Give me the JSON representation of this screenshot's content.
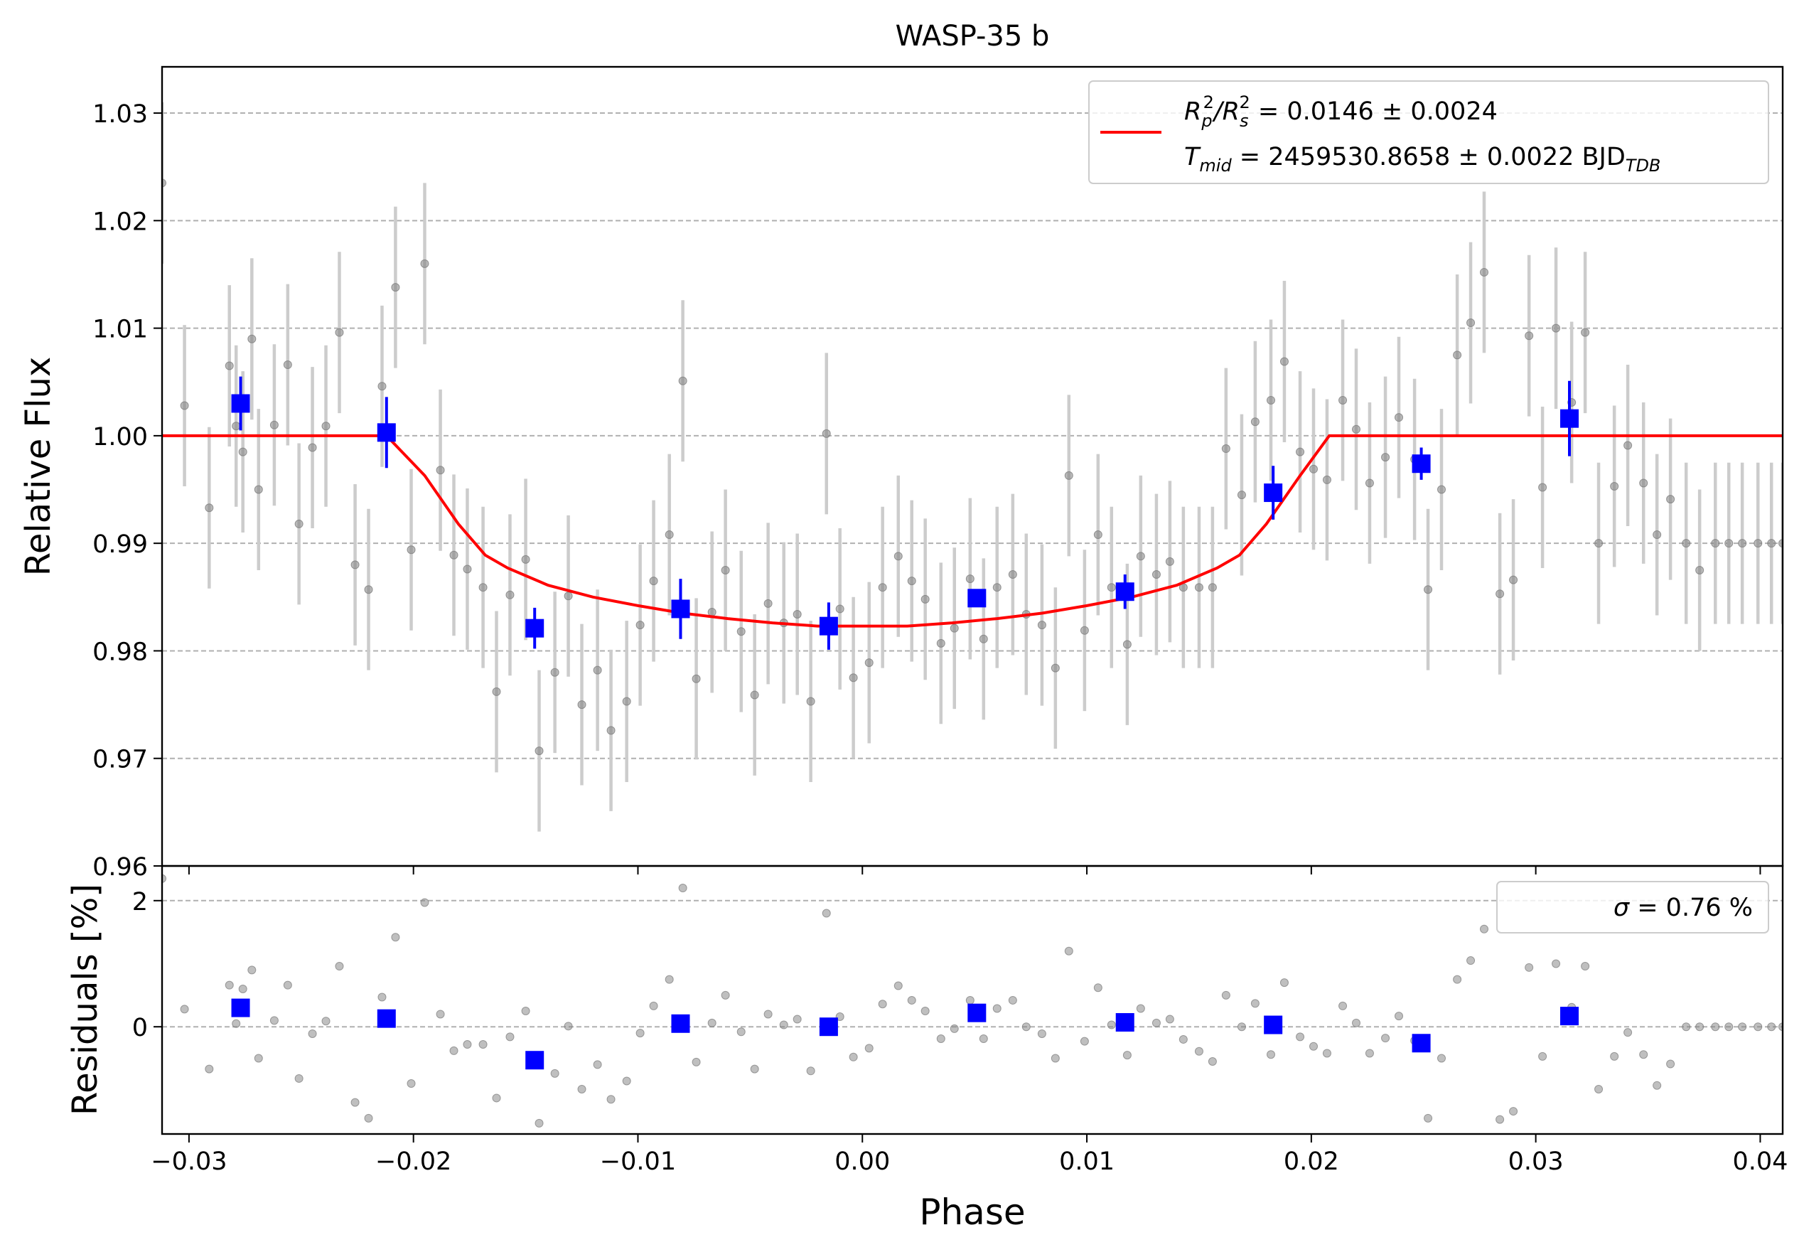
{
  "chart_data": [
    {
      "type": "scatter",
      "panel": "top",
      "title": "WASP-35 b",
      "xlabel": "",
      "ylabel": "Relative Flux",
      "xlim": [
        -0.0312,
        0.041
      ],
      "ylim": [
        0.96,
        1.0343
      ],
      "xticks": [
        -0.03,
        -0.02,
        -0.01,
        0.0,
        0.01,
        0.02,
        0.03,
        0.04
      ],
      "xticklabels": [
        "−0.03",
        "−0.02",
        "−0.01",
        "0.00",
        "0.01",
        "0.02",
        "0.03",
        "0.04"
      ],
      "yticks": [
        0.96,
        0.97,
        0.98,
        0.99,
        1.0,
        1.01,
        1.02,
        1.03
      ],
      "yticklabels": [
        "0.96",
        "0.97",
        "0.98",
        "0.99",
        "1.00",
        "1.01",
        "1.02",
        "1.03"
      ],
      "grid": "horizontal dashed",
      "legend_position": "upper-right",
      "legend": {
        "line1": {
          "pre": "R",
          "sub1": "p",
          "sup1": "2",
          "mid": "/R",
          "sub2": "s",
          "sup2": "2",
          "post": " = 0.0146 ± 0.0024"
        },
        "line2": {
          "pre": "T",
          "sub": "mid",
          "post": " = 2459530.8658 ± 0.0022 BJD",
          "sub2": "TDB"
        }
      },
      "model": {
        "color": "#ff0000",
        "x": [
          -0.0312,
          -0.0212,
          -0.0195,
          -0.018,
          -0.0168,
          -0.0158,
          -0.014,
          -0.012,
          -0.01,
          -0.008,
          -0.006,
          -0.004,
          -0.002,
          0.0,
          0.002,
          0.004,
          0.006,
          0.008,
          0.01,
          0.012,
          0.014,
          0.0158,
          0.0168,
          0.018,
          0.0195,
          0.0208,
          0.041
        ],
        "y": [
          1.0,
          1.0,
          0.9963,
          0.9918,
          0.9889,
          0.9877,
          0.9861,
          0.985,
          0.9842,
          0.9835,
          0.983,
          0.9826,
          0.9823,
          0.9823,
          0.9823,
          0.9826,
          0.983,
          0.9835,
          0.9842,
          0.985,
          0.9861,
          0.9877,
          0.9889,
          0.9918,
          0.9963,
          1.0,
          1.0
        ]
      },
      "raw_points": {
        "color": "#808080",
        "x": [
          -0.0312,
          -0.0302,
          -0.0291,
          -0.0282,
          -0.0279,
          -0.0276,
          -0.0272,
          -0.0269,
          -0.0262,
          -0.0256,
          -0.0251,
          -0.0245,
          -0.0239,
          -0.0233,
          -0.0226,
          -0.022,
          -0.0214,
          -0.0208,
          -0.0201,
          -0.0195,
          -0.0188,
          -0.0182,
          -0.0176,
          -0.0169,
          -0.0163,
          -0.0157,
          -0.015,
          -0.0144,
          -0.0137,
          -0.0131,
          -0.0125,
          -0.0118,
          -0.0112,
          -0.0105,
          -0.0099,
          -0.0093,
          -0.0086,
          -0.008,
          -0.0074,
          -0.0067,
          -0.0061,
          -0.0054,
          -0.0048,
          -0.0042,
          -0.0035,
          -0.0029,
          -0.0023,
          -0.0016,
          -0.001,
          -0.0004,
          0.0003,
          0.0009,
          0.0016,
          0.0022,
          0.0028,
          0.0035,
          0.0041,
          0.0048,
          0.0054,
          0.006,
          0.0067,
          0.0073,
          0.008,
          0.0086,
          0.0092,
          0.0099,
          0.0105,
          0.0111,
          0.0118,
          0.0124,
          0.0131,
          0.0137,
          0.0143,
          0.015,
          0.0156,
          0.0162,
          0.0169,
          0.0175,
          0.0182,
          0.0188,
          0.0195,
          0.0201,
          0.0207,
          0.0214,
          0.022,
          0.0226,
          0.0233,
          0.0239,
          0.0246,
          0.0252,
          0.0258,
          0.0265,
          0.0271,
          0.0277,
          0.0284,
          0.029,
          0.0297,
          0.0303,
          0.0309,
          0.0316,
          0.0322,
          0.0328,
          0.0335,
          0.0341,
          0.0348,
          0.0354,
          0.036,
          0.0367,
          0.0373,
          0.038,
          0.0386,
          0.0392,
          0.0399,
          0.0405,
          0.041
        ],
        "y": [
          1.0235,
          1.0028,
          0.9933,
          1.0065,
          1.0009,
          0.9985,
          1.009,
          0.995,
          1.001,
          1.0066,
          0.9918,
          0.9989,
          1.0009,
          1.0096,
          0.988,
          0.9857,
          1.0046,
          1.0138,
          0.9894,
          1.016,
          0.9968,
          0.9889,
          0.9876,
          0.9859,
          0.9762,
          0.9852,
          0.9885,
          0.9707,
          0.978,
          0.9851,
          0.975,
          0.9782,
          0.9726,
          0.9753,
          0.9824,
          0.9865,
          0.9908,
          1.0051,
          0.9774,
          0.9836,
          0.9875,
          0.9818,
          0.9759,
          0.9844,
          0.9826,
          0.9834,
          0.9753,
          1.0002,
          0.9839,
          0.9775,
          0.9789,
          0.9859,
          0.9888,
          0.9865,
          0.9848,
          0.9807,
          0.9821,
          0.9867,
          0.9811,
          0.9859,
          0.9871,
          0.9834,
          0.9824,
          0.9784,
          0.9963,
          0.9819,
          0.9908,
          0.9859,
          0.9806,
          0.9888,
          0.9871,
          0.9883,
          0.9859,
          0.9859,
          0.9859,
          0.9988,
          0.9945,
          1.0013,
          1.0033,
          1.0069,
          0.9985,
          0.9969,
          0.9959,
          1.0033,
          1.0006,
          0.9956,
          0.998,
          1.0017,
          0.9978,
          0.9857,
          0.995,
          1.0075,
          1.0105,
          1.0152,
          0.9853,
          0.9866,
          1.0093,
          0.9952,
          1.01,
          1.0031,
          1.0096,
          0.99,
          0.9953,
          0.9991,
          0.9956,
          0.9908,
          0.9941,
          0.99,
          0.9875,
          0.99,
          0.99,
          0.99,
          0.99,
          0.99,
          0.99
        ],
        "err": 0.0075
      },
      "binned_points": {
        "color": "#0000ff",
        "x": [
          -0.0277,
          -0.0212,
          -0.0146,
          -0.0081,
          -0.0015,
          0.0051,
          0.0117,
          0.0183,
          0.0249,
          0.0315
        ],
        "y": [
          1.003,
          1.0003,
          0.9821,
          0.9839,
          0.9823,
          0.9849,
          0.9855,
          0.9947,
          0.9974,
          1.0016
        ],
        "err": [
          0.0025,
          0.0033,
          0.0019,
          0.0028,
          0.0022,
          0.0,
          0.0016,
          0.0025,
          0.0015,
          0.0035
        ]
      }
    },
    {
      "type": "scatter",
      "panel": "bottom",
      "xlabel": "Phase",
      "ylabel": "Residuals [%]",
      "xlim": [
        -0.0312,
        0.041
      ],
      "ylim": [
        -1.7,
        2.55
      ],
      "yticks": [
        0,
        2
      ],
      "yticklabels": [
        "0",
        "2"
      ],
      "grid": "horizontal dashed",
      "legend_position": "upper-right",
      "legend": {
        "symbol": "σ",
        "text": " = 0.76 %"
      },
      "raw_points": {
        "color": "#808080",
        "x": [
          -0.0312,
          -0.0302,
          -0.0291,
          -0.0282,
          -0.0279,
          -0.0276,
          -0.0272,
          -0.0269,
          -0.0262,
          -0.0256,
          -0.0251,
          -0.0245,
          -0.0239,
          -0.0233,
          -0.0226,
          -0.022,
          -0.0214,
          -0.0208,
          -0.0201,
          -0.0195,
          -0.0188,
          -0.0182,
          -0.0176,
          -0.0169,
          -0.0163,
          -0.0157,
          -0.015,
          -0.0144,
          -0.0137,
          -0.0131,
          -0.0125,
          -0.0118,
          -0.0112,
          -0.0105,
          -0.0099,
          -0.0093,
          -0.0086,
          -0.008,
          -0.0074,
          -0.0067,
          -0.0061,
          -0.0054,
          -0.0048,
          -0.0042,
          -0.0035,
          -0.0029,
          -0.0023,
          -0.0016,
          -0.001,
          -0.0004,
          0.0003,
          0.0009,
          0.0016,
          0.0022,
          0.0028,
          0.0035,
          0.0041,
          0.0048,
          0.0054,
          0.006,
          0.0067,
          0.0073,
          0.008,
          0.0086,
          0.0092,
          0.0099,
          0.0105,
          0.0111,
          0.0118,
          0.0124,
          0.0131,
          0.0137,
          0.0143,
          0.015,
          0.0156,
          0.0162,
          0.0169,
          0.0175,
          0.0182,
          0.0188,
          0.0195,
          0.0201,
          0.0207,
          0.0214,
          0.022,
          0.0226,
          0.0233,
          0.0239,
          0.0246,
          0.0252,
          0.0258,
          0.0265,
          0.0271,
          0.0277,
          0.0284,
          0.029,
          0.0297,
          0.0303,
          0.0309,
          0.0316,
          0.0322,
          0.0328,
          0.0335,
          0.0341,
          0.0348,
          0.0354,
          0.036,
          0.0367,
          0.0373,
          0.038,
          0.0386,
          0.0392,
          0.0399,
          0.0405,
          0.041
        ],
        "y": [
          2.35,
          0.28,
          -0.67,
          0.66,
          0.05,
          0.6,
          0.9,
          -0.5,
          0.1,
          0.66,
          -0.82,
          -0.11,
          0.09,
          0.96,
          -1.2,
          -1.45,
          0.47,
          1.42,
          -0.9,
          1.97,
          0.2,
          -0.38,
          -0.28,
          -0.28,
          -1.13,
          -0.16,
          0.25,
          -1.53,
          -0.74,
          0.01,
          -0.99,
          -0.6,
          -1.15,
          -0.86,
          -0.1,
          0.33,
          0.75,
          2.2,
          -0.56,
          0.06,
          0.5,
          -0.08,
          -0.67,
          0.2,
          0.03,
          0.12,
          -0.7,
          1.8,
          0.16,
          -0.48,
          -0.34,
          0.36,
          0.65,
          0.42,
          0.25,
          -0.19,
          -0.03,
          0.42,
          -0.19,
          0.29,
          0.42,
          0.0,
          -0.11,
          -0.5,
          1.2,
          -0.23,
          0.62,
          0.03,
          -0.45,
          0.29,
          0.06,
          0.12,
          -0.2,
          -0.39,
          -0.55,
          0.5,
          0.0,
          0.37,
          -0.44,
          0.7,
          -0.16,
          -0.31,
          -0.42,
          0.33,
          0.06,
          -0.42,
          -0.18,
          0.17,
          -0.22,
          -1.45,
          -0.5,
          0.75,
          1.05,
          1.55,
          -1.47,
          -1.34,
          0.94,
          -0.47,
          1.0,
          0.31,
          0.96,
          -0.99,
          -0.47,
          -0.09,
          -0.44,
          -0.93,
          -0.59,
          0.0,
          0.0,
          0.0,
          0.0,
          0.0,
          0.0,
          0.0,
          0.0
        ]
      },
      "binned_points": {
        "color": "#0000ff",
        "x": [
          -0.0277,
          -0.0212,
          -0.0146,
          -0.0081,
          -0.0015,
          0.0051,
          0.0117,
          0.0183,
          0.0249,
          0.0315
        ],
        "y": [
          0.3,
          0.13,
          -0.53,
          0.05,
          0.0,
          0.22,
          0.07,
          0.03,
          -0.26,
          0.17
        ]
      }
    }
  ]
}
